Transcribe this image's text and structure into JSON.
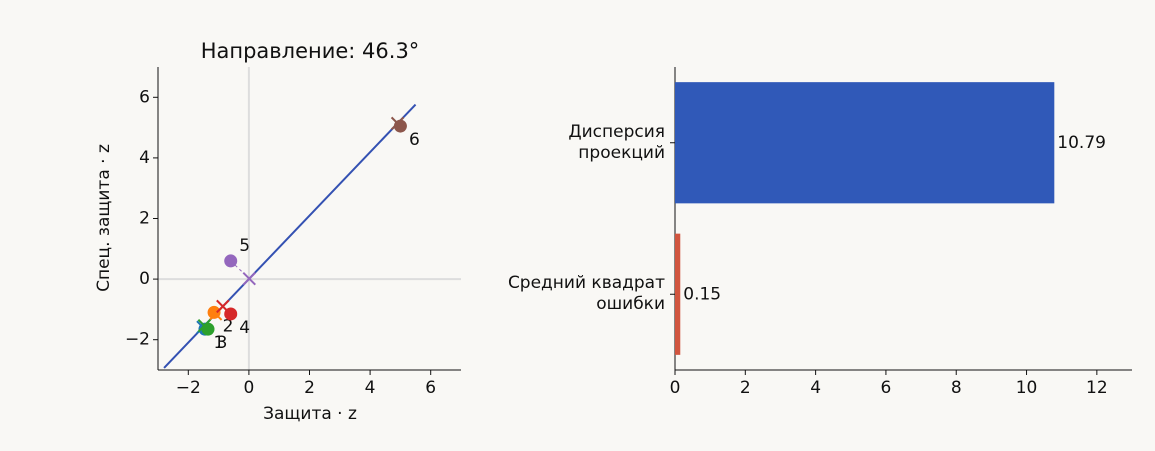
{
  "chart_data": [
    {
      "type": "scatter",
      "title": "Направление: 46.3°",
      "xlabel": "Защита · z",
      "ylabel": "Спец. защита · z",
      "x": [
        -1.45,
        -1.15,
        -1.35,
        -0.6,
        -0.6,
        5.0
      ],
      "y": [
        -1.65,
        -1.1,
        -1.65,
        -1.15,
        0.6,
        5.05
      ],
      "labels": [
        "1",
        "2",
        "3",
        "4",
        "5",
        "6"
      ],
      "colors": [
        "#1f77b4",
        "#ff7f0e",
        "#2ca02c",
        "#d62728",
        "#9467bd",
        "#8c564b"
      ],
      "line": {
        "x": [
          -2.8,
          5.5
        ],
        "y": [
          -2.93,
          5.76
        ],
        "color": "#3451b2"
      },
      "xlim": [
        -3,
        7
      ],
      "ylim": [
        -3,
        7
      ],
      "xticks": [
        {
          "value": -2,
          "label": "−2"
        },
        0,
        2,
        4,
        6
      ],
      "yticks": [
        {
          "value": -2,
          "label": "−2"
        },
        0,
        2,
        4,
        6
      ],
      "zero_lines": true
    },
    {
      "type": "barh",
      "categories": [
        "Дисперсия\nпроекций",
        "Средний квадрат\nошибки"
      ],
      "values": [
        10.79,
        0.15
      ],
      "colors": [
        "#3059b8",
        "#d1553f"
      ],
      "xlim": [
        0,
        13
      ],
      "xticks": [
        0,
        2,
        4,
        6,
        8,
        10,
        12
      ]
    }
  ]
}
